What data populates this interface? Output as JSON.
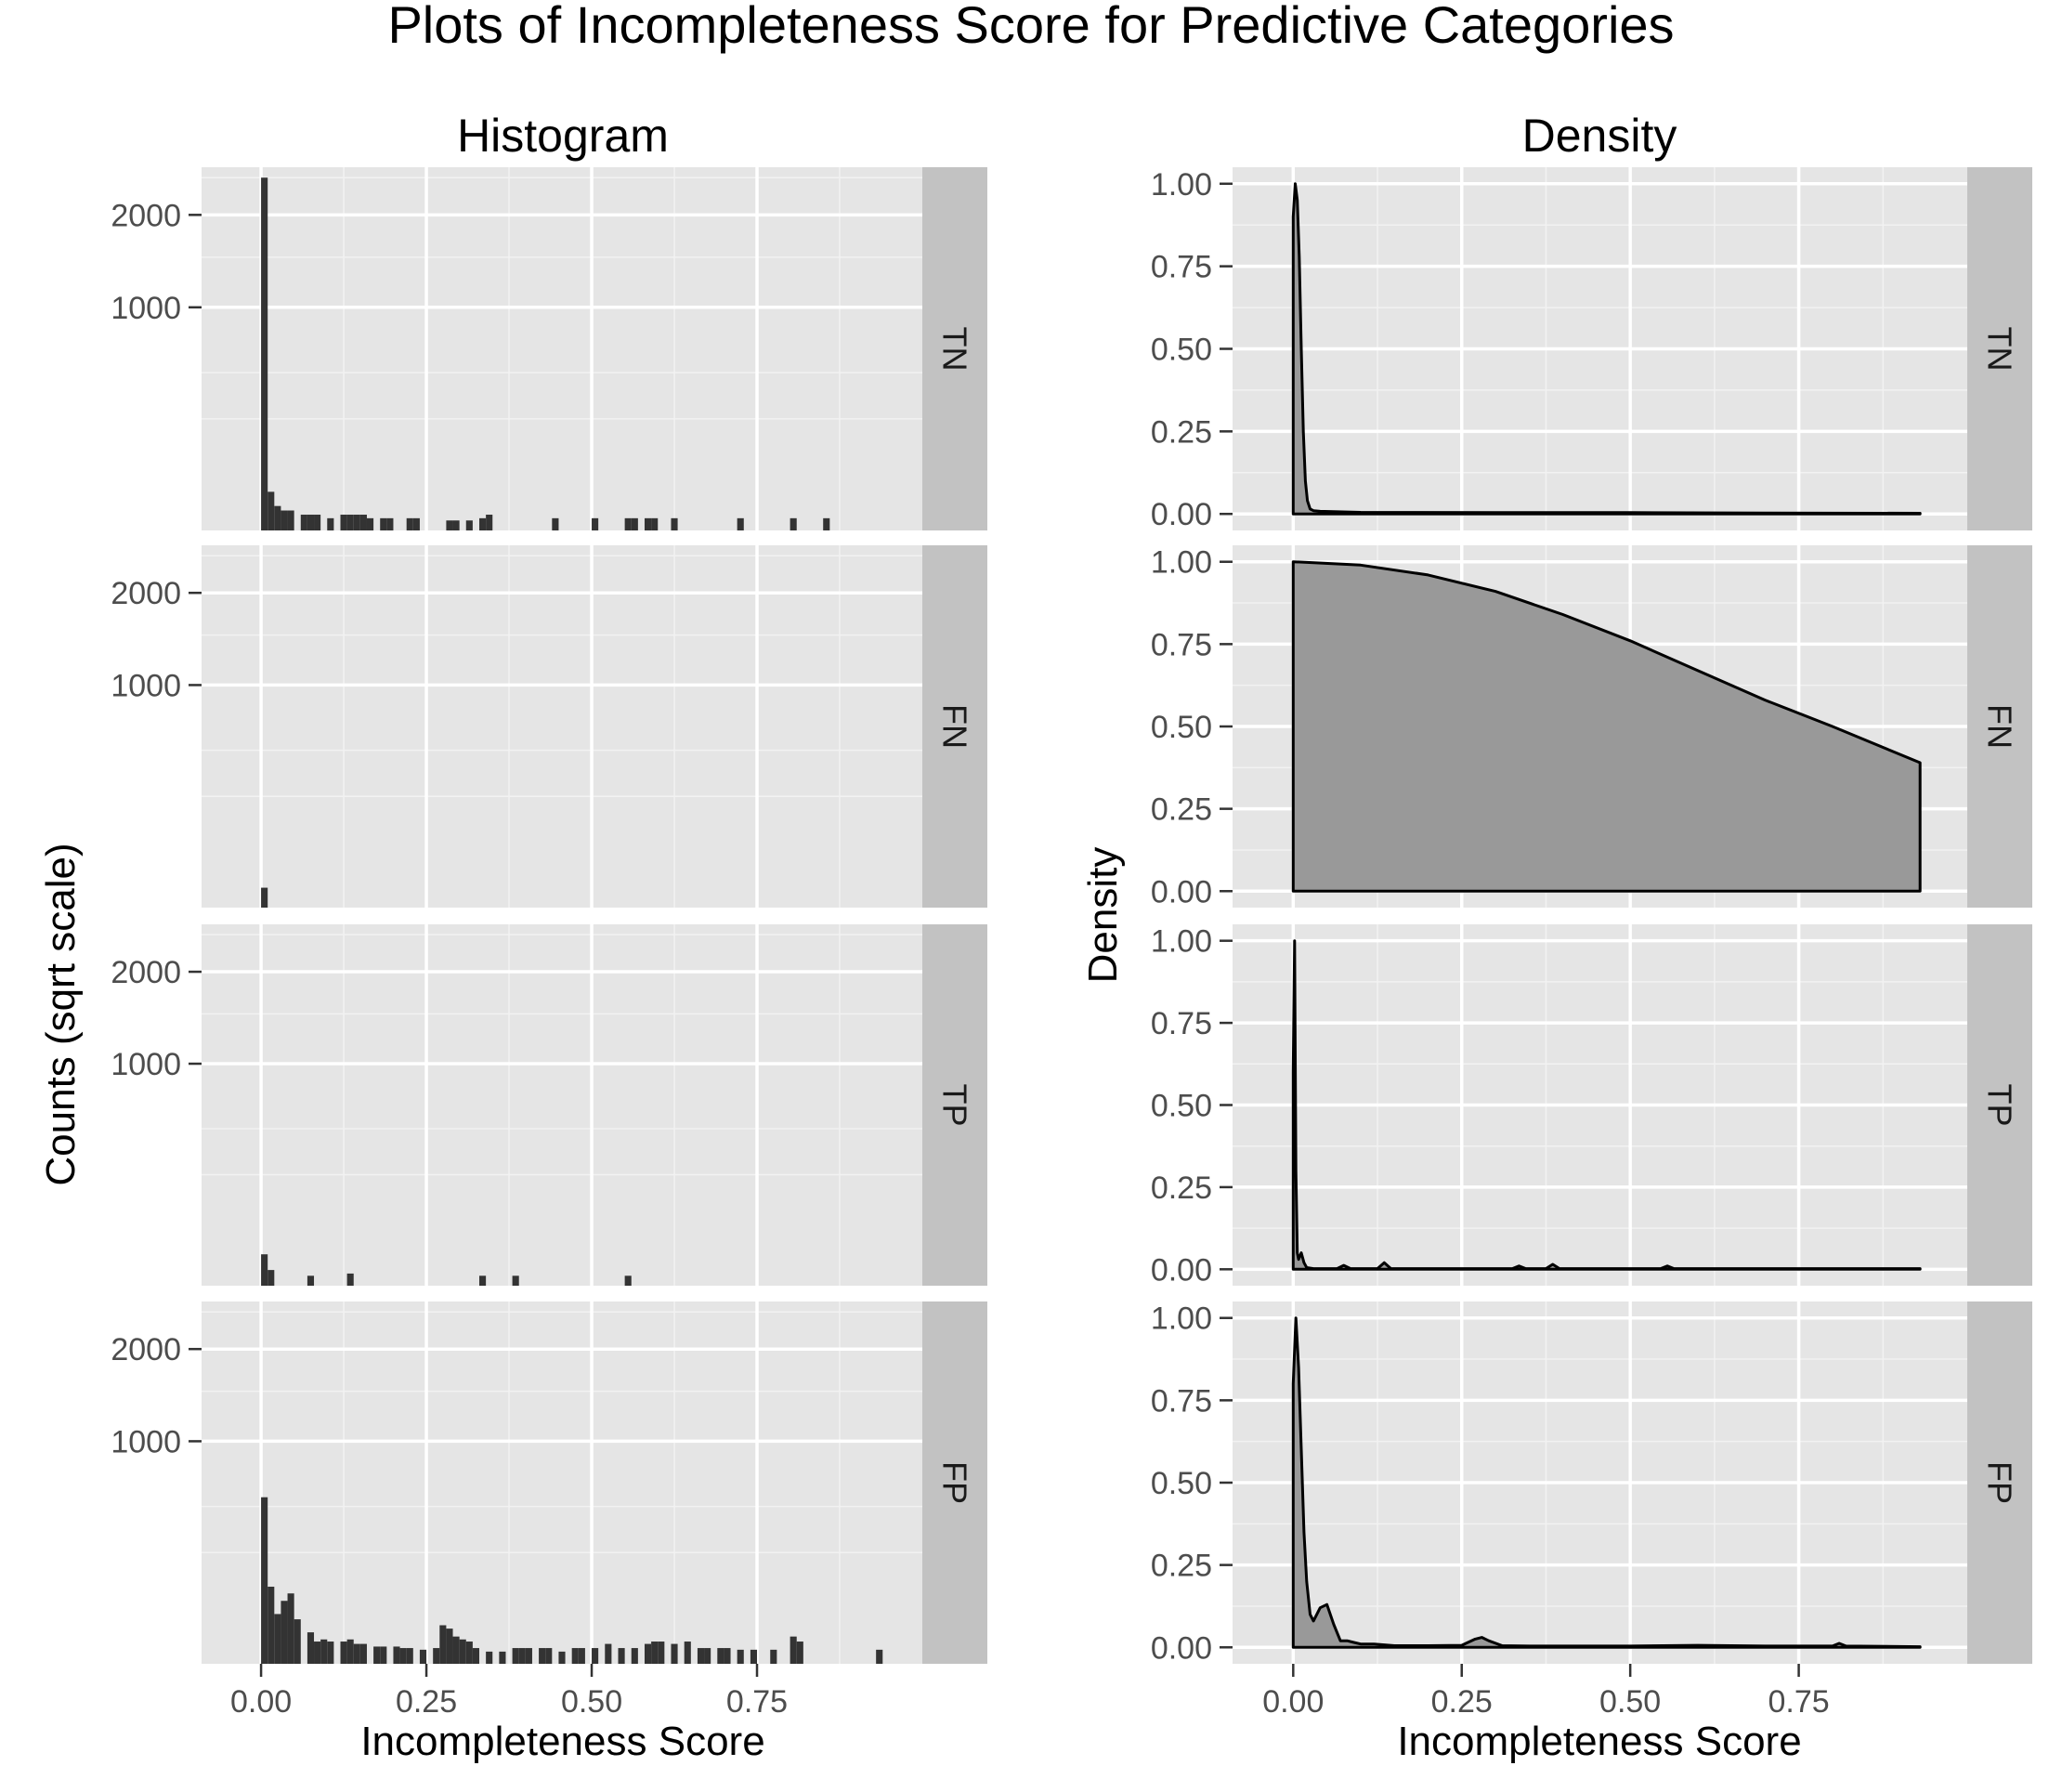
{
  "title": "Plots of Incompleteness Score for Predictive Categories",
  "panels": [
    "TN",
    "FN",
    "TP",
    "FP"
  ],
  "chart_data": [
    {
      "type": "bar",
      "title": "Histogram",
      "xlabel": "Incompleteness Score",
      "ylabel": "Counts (sqrt scale)",
      "y_scale": "sqrt",
      "xlim": [
        -0.09,
        1.0
      ],
      "ylim": [
        0,
        2650
      ],
      "x_ticks": [
        0.0,
        0.25,
        0.5,
        0.75
      ],
      "x_tick_labels": [
        "0.00",
        "0.25",
        "0.50",
        "0.75"
      ],
      "y_ticks": [
        1000,
        2000
      ],
      "y_tick_labels": [
        "1000",
        "2000"
      ],
      "bin_width": 0.01,
      "facets": [
        {
          "label": "TN",
          "bins": [
            [
              0.005,
              2500
            ],
            [
              0.015,
              30
            ],
            [
              0.025,
              12
            ],
            [
              0.035,
              8
            ],
            [
              0.045,
              8
            ],
            [
              0.065,
              5
            ],
            [
              0.075,
              5
            ],
            [
              0.085,
              5
            ],
            [
              0.105,
              3
            ],
            [
              0.125,
              5
            ],
            [
              0.135,
              5
            ],
            [
              0.145,
              5
            ],
            [
              0.155,
              5
            ],
            [
              0.165,
              3
            ],
            [
              0.185,
              3
            ],
            [
              0.195,
              3
            ],
            [
              0.225,
              3
            ],
            [
              0.235,
              3
            ],
            [
              0.285,
              2
            ],
            [
              0.295,
              2
            ],
            [
              0.315,
              2
            ],
            [
              0.335,
              3
            ],
            [
              0.345,
              5
            ],
            [
              0.445,
              3
            ],
            [
              0.505,
              3
            ],
            [
              0.555,
              3
            ],
            [
              0.565,
              3
            ],
            [
              0.585,
              3
            ],
            [
              0.595,
              3
            ],
            [
              0.625,
              3
            ],
            [
              0.725,
              3
            ],
            [
              0.805,
              3
            ],
            [
              0.855,
              3
            ]
          ]
        },
        {
          "label": "FN",
          "bins": [
            [
              0.005,
              8
            ]
          ]
        },
        {
          "label": "TP",
          "bins": [
            [
              0.005,
              20
            ],
            [
              0.015,
              5
            ],
            [
              0.075,
              2
            ],
            [
              0.135,
              3
            ],
            [
              0.335,
              2
            ],
            [
              0.385,
              2
            ],
            [
              0.555,
              2
            ]
          ]
        },
        {
          "label": "FP",
          "bins": [
            [
              0.005,
              560
            ],
            [
              0.015,
              120
            ],
            [
              0.025,
              50
            ],
            [
              0.035,
              80
            ],
            [
              0.045,
              100
            ],
            [
              0.055,
              40
            ],
            [
              0.075,
              20
            ],
            [
              0.085,
              10
            ],
            [
              0.095,
              12
            ],
            [
              0.105,
              10
            ],
            [
              0.125,
              10
            ],
            [
              0.135,
              12
            ],
            [
              0.145,
              8
            ],
            [
              0.155,
              8
            ],
            [
              0.175,
              6
            ],
            [
              0.185,
              6
            ],
            [
              0.205,
              6
            ],
            [
              0.215,
              5
            ],
            [
              0.225,
              5
            ],
            [
              0.245,
              4
            ],
            [
              0.265,
              5
            ],
            [
              0.275,
              30
            ],
            [
              0.285,
              25
            ],
            [
              0.295,
              15
            ],
            [
              0.305,
              12
            ],
            [
              0.315,
              10
            ],
            [
              0.325,
              5
            ],
            [
              0.345,
              3
            ],
            [
              0.365,
              3
            ],
            [
              0.385,
              5
            ],
            [
              0.395,
              5
            ],
            [
              0.405,
              5
            ],
            [
              0.425,
              5
            ],
            [
              0.435,
              5
            ],
            [
              0.455,
              3
            ],
            [
              0.475,
              5
            ],
            [
              0.485,
              5
            ],
            [
              0.505,
              5
            ],
            [
              0.525,
              8
            ],
            [
              0.545,
              5
            ],
            [
              0.565,
              5
            ],
            [
              0.585,
              8
            ],
            [
              0.595,
              10
            ],
            [
              0.605,
              10
            ],
            [
              0.625,
              8
            ],
            [
              0.645,
              10
            ],
            [
              0.665,
              5
            ],
            [
              0.675,
              5
            ],
            [
              0.695,
              5
            ],
            [
              0.705,
              5
            ],
            [
              0.725,
              4
            ],
            [
              0.745,
              4
            ],
            [
              0.775,
              4
            ],
            [
              0.805,
              15
            ],
            [
              0.815,
              10
            ],
            [
              0.935,
              4
            ]
          ]
        }
      ]
    },
    {
      "type": "area",
      "title": "Density",
      "xlabel": "Incompleteness Score",
      "ylabel": "Density",
      "xlim": [
        -0.09,
        1.0
      ],
      "ylim": [
        -0.05,
        1.05
      ],
      "x_ticks": [
        0.0,
        0.25,
        0.5,
        0.75
      ],
      "x_tick_labels": [
        "0.00",
        "0.25",
        "0.50",
        "0.75"
      ],
      "y_ticks": [
        0.0,
        0.25,
        0.5,
        0.75,
        1.0
      ],
      "y_tick_labels": [
        "0.00",
        "0.25",
        "0.50",
        "0.75",
        "1.00"
      ],
      "facets": [
        {
          "label": "TN",
          "x": [
            0.0,
            0.003,
            0.006,
            0.009,
            0.012,
            0.015,
            0.018,
            0.021,
            0.025,
            0.03,
            0.04,
            0.1,
            0.3,
            0.5,
            0.7,
            0.93
          ],
          "y": [
            0.9,
            1.0,
            0.95,
            0.78,
            0.5,
            0.25,
            0.1,
            0.04,
            0.015,
            0.01,
            0.008,
            0.005,
            0.004,
            0.004,
            0.003,
            0.002
          ]
        },
        {
          "label": "FN",
          "x": [
            0.0,
            0.1,
            0.2,
            0.3,
            0.4,
            0.5,
            0.6,
            0.7,
            0.8,
            0.93
          ],
          "y": [
            1.0,
            0.99,
            0.96,
            0.91,
            0.84,
            0.76,
            0.67,
            0.58,
            0.5,
            0.39
          ]
        },
        {
          "label": "TP",
          "x": [
            0.0,
            0.002,
            0.004,
            0.006,
            0.008,
            0.012,
            0.016,
            0.02,
            0.03,
            0.065,
            0.075,
            0.085,
            0.125,
            0.135,
            0.145,
            0.325,
            0.335,
            0.345,
            0.375,
            0.385,
            0.395,
            0.545,
            0.555,
            0.565,
            0.93
          ],
          "y": [
            0.6,
            1.0,
            0.3,
            0.05,
            0.03,
            0.05,
            0.02,
            0.005,
            0.002,
            0.002,
            0.012,
            0.002,
            0.002,
            0.02,
            0.002,
            0.002,
            0.01,
            0.002,
            0.002,
            0.015,
            0.002,
            0.002,
            0.01,
            0.002,
            0.002
          ]
        },
        {
          "label": "FP",
          "x": [
            0.0,
            0.004,
            0.008,
            0.012,
            0.016,
            0.02,
            0.025,
            0.03,
            0.04,
            0.05,
            0.06,
            0.07,
            0.08,
            0.09,
            0.1,
            0.12,
            0.15,
            0.2,
            0.25,
            0.27,
            0.28,
            0.29,
            0.31,
            0.35,
            0.4,
            0.5,
            0.6,
            0.7,
            0.8,
            0.81,
            0.82,
            0.93
          ],
          "y": [
            0.8,
            1.0,
            0.85,
            0.6,
            0.35,
            0.2,
            0.1,
            0.08,
            0.12,
            0.13,
            0.07,
            0.02,
            0.02,
            0.015,
            0.01,
            0.01,
            0.005,
            0.005,
            0.006,
            0.025,
            0.03,
            0.02,
            0.005,
            0.004,
            0.004,
            0.004,
            0.006,
            0.004,
            0.004,
            0.012,
            0.004,
            0.002
          ]
        }
      ]
    }
  ]
}
